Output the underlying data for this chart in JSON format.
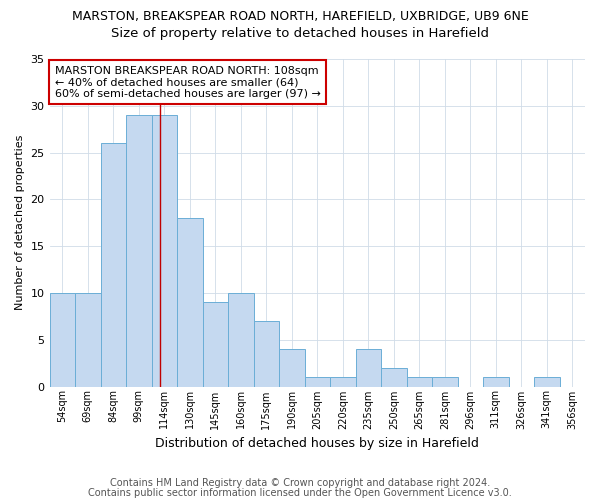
{
  "title1": "MARSTON, BREAKSPEAR ROAD NORTH, HAREFIELD, UXBRIDGE, UB9 6NE",
  "title2": "Size of property relative to detached houses in Harefield",
  "xlabel": "Distribution of detached houses by size in Harefield",
  "ylabel": "Number of detached properties",
  "bin_labels": [
    "54sqm",
    "69sqm",
    "84sqm",
    "99sqm",
    "114sqm",
    "130sqm",
    "145sqm",
    "160sqm",
    "175sqm",
    "190sqm",
    "205sqm",
    "220sqm",
    "235sqm",
    "250sqm",
    "265sqm",
    "281sqm",
    "296sqm",
    "311sqm",
    "326sqm",
    "341sqm",
    "356sqm"
  ],
  "bar_heights": [
    10,
    10,
    26,
    29,
    29,
    18,
    9,
    10,
    7,
    4,
    1,
    1,
    4,
    2,
    1,
    1,
    0,
    1,
    0,
    1,
    0
  ],
  "bar_width": 1.0,
  "bar_color": "#c5d9f0",
  "bar_edge_color": "#6baed6",
  "property_size_bar_index": 3.85,
  "red_line_color": "#c00000",
  "annotation_text": "MARSTON BREAKSPEAR ROAD NORTH: 108sqm\n← 40% of detached houses are smaller (64)\n60% of semi-detached houses are larger (97) →",
  "annotation_box_color": "#ffffff",
  "annotation_box_edge": "#cc0000",
  "ylim": [
    0,
    35
  ],
  "yticks": [
    0,
    5,
    10,
    15,
    20,
    25,
    30,
    35
  ],
  "footer1": "Contains HM Land Registry data © Crown copyright and database right 2024.",
  "footer2": "Contains public sector information licensed under the Open Government Licence v3.0.",
  "bg_color": "#ffffff",
  "grid_color": "#d0dce8",
  "title1_fontsize": 9,
  "title2_fontsize": 9.5,
  "xlabel_fontsize": 9,
  "ylabel_fontsize": 8,
  "tick_fontsize": 7,
  "footer_fontsize": 7,
  "annotation_fontsize": 8
}
